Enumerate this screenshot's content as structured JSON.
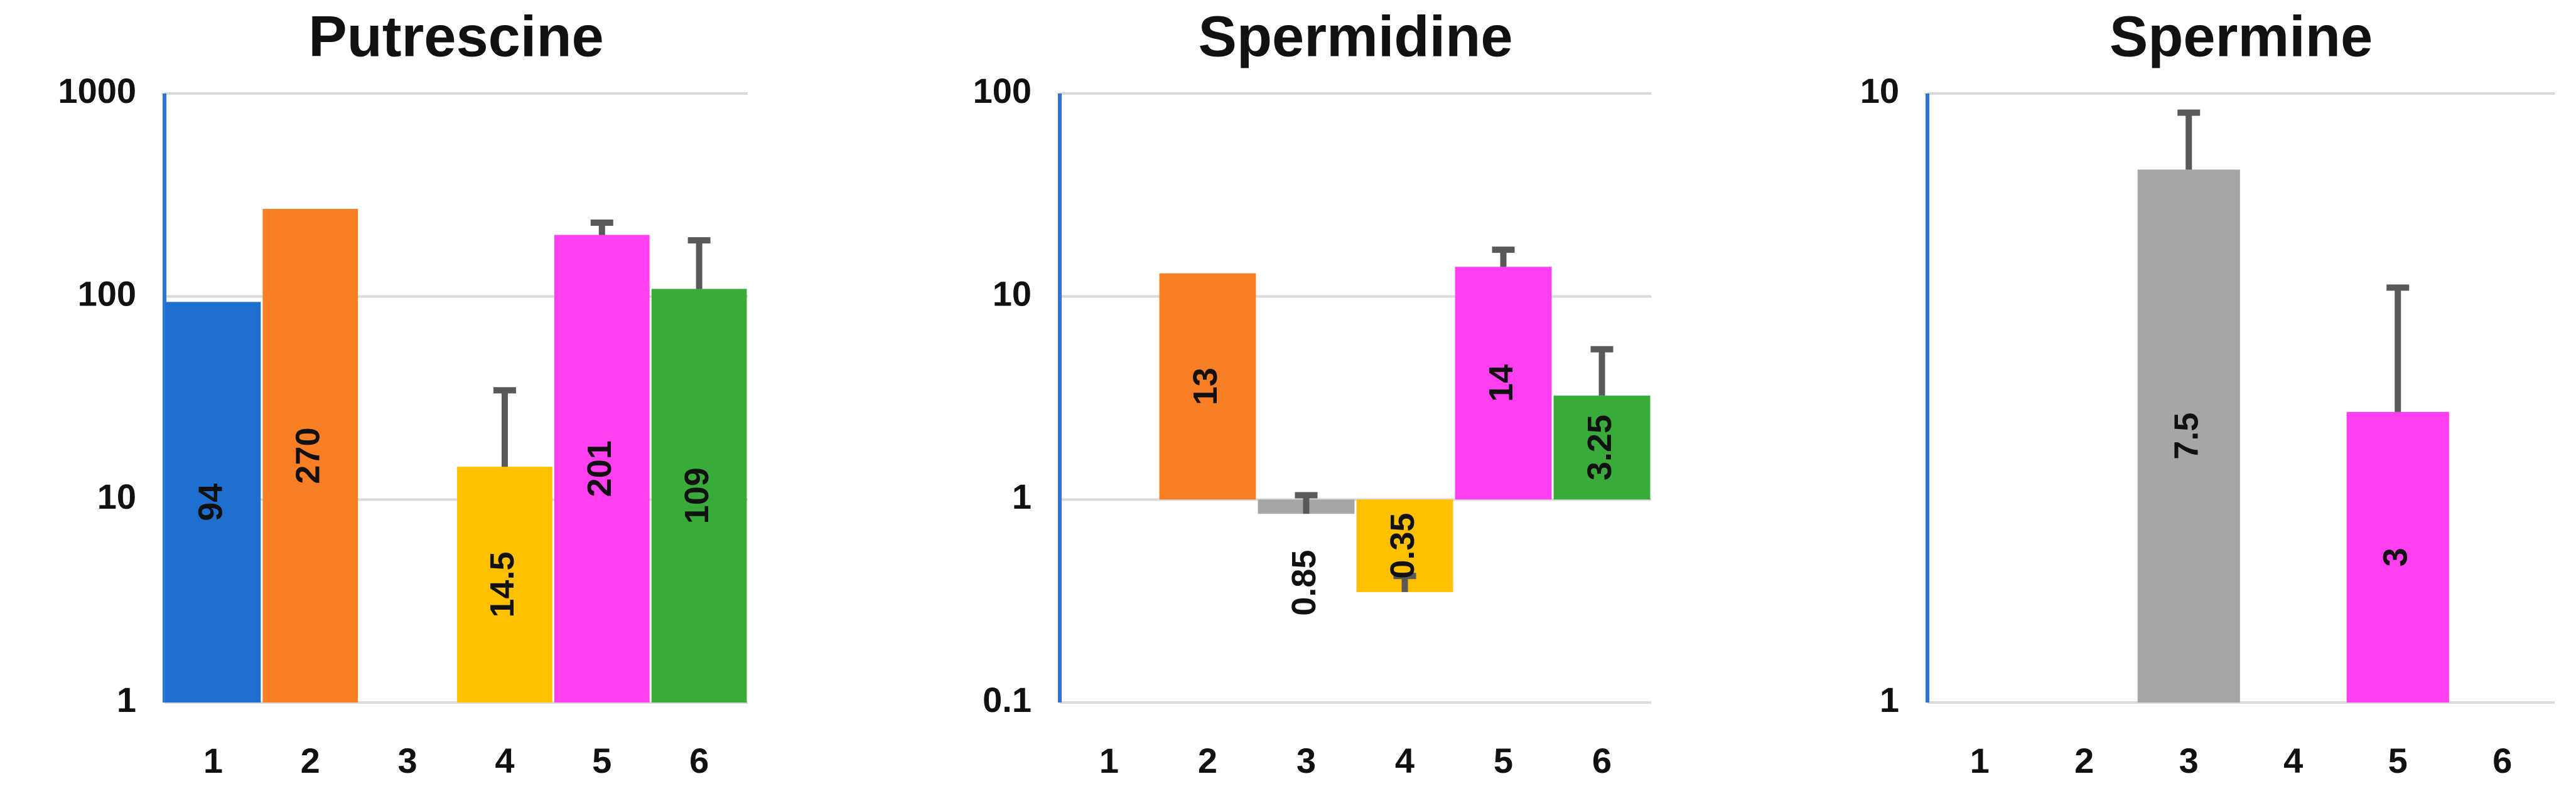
{
  "chart_data": [
    {
      "type": "bar",
      "title": "Putrescine",
      "categories": [
        "1",
        "2",
        "3",
        "4",
        "5",
        "6"
      ],
      "values": [
        94,
        270,
        null,
        14.5,
        201,
        109
      ],
      "errors": [
        null,
        null,
        null,
        20,
        30,
        80
      ],
      "colors": [
        "#1f6fcf",
        "#f97f27",
        "#a6a6a6",
        "#ffc000",
        "#ff3ff0",
        "#3aaa3a"
      ],
      "ylim": [
        1,
        1000
      ],
      "yticks": [
        1,
        10,
        100,
        1000
      ],
      "log_scale": true,
      "grid": true
    },
    {
      "type": "bar",
      "title": "Spermidine",
      "categories": [
        "1",
        "2",
        "3",
        "4",
        "5",
        "6"
      ],
      "values": [
        null,
        13,
        0.85,
        0.35,
        14,
        3.25
      ],
      "errors": [
        null,
        null,
        0.2,
        0.07,
        3,
        2.25
      ],
      "colors": [
        "#1f6fcf",
        "#f97f27",
        "#a6a6a6",
        "#ffc000",
        "#ff3ff0",
        "#3aaa3a"
      ],
      "ylim": [
        0.1,
        100
      ],
      "yticks": [
        0.1,
        1,
        10,
        100
      ],
      "log_scale": true,
      "grid": true
    },
    {
      "type": "bar",
      "title": "Spermine",
      "categories": [
        "1",
        "2",
        "3",
        "4",
        "5",
        "6"
      ],
      "values": [
        null,
        null,
        7.5,
        null,
        3,
        null
      ],
      "errors": [
        null,
        null,
        1.8,
        null,
        1.8,
        null
      ],
      "colors": [
        "#1f6fcf",
        "#f97f27",
        "#a6a6a6",
        "#ffc000",
        "#ff3ff0",
        "#3aaa3a"
      ],
      "ylim": [
        1,
        10
      ],
      "yticks": [
        1,
        10
      ],
      "log_scale": true,
      "grid": true
    }
  ]
}
